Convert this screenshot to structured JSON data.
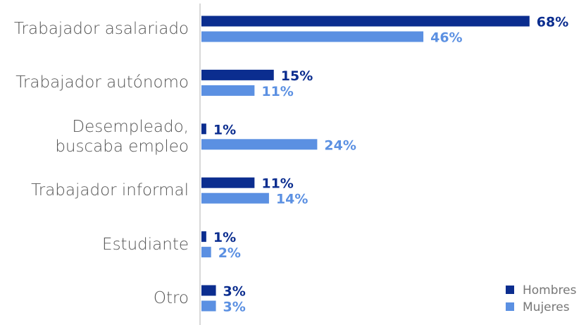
{
  "chart_data": {
    "type": "bar",
    "orientation": "horizontal",
    "categories": [
      "Trabajador asalariado",
      "Trabajador autónomo",
      "Desempleado, buscaba empleo",
      "Trabajador informal",
      "Estudiante",
      "Otro"
    ],
    "series": [
      {
        "name": "Hombres",
        "color": "#0b2d8f",
        "values": [
          68,
          15,
          1,
          11,
          1,
          3
        ],
        "value_labels": [
          "68%",
          "15%",
          "1%",
          "11%",
          "1%",
          "3%"
        ]
      },
      {
        "name": "Mujeres",
        "color": "#5b90e2",
        "values": [
          46,
          11,
          24,
          14,
          2,
          3
        ],
        "value_labels": [
          "46%",
          "11%",
          "24%",
          "14%",
          "2%",
          "3%"
        ]
      }
    ],
    "legend": "bottom-right"
  }
}
